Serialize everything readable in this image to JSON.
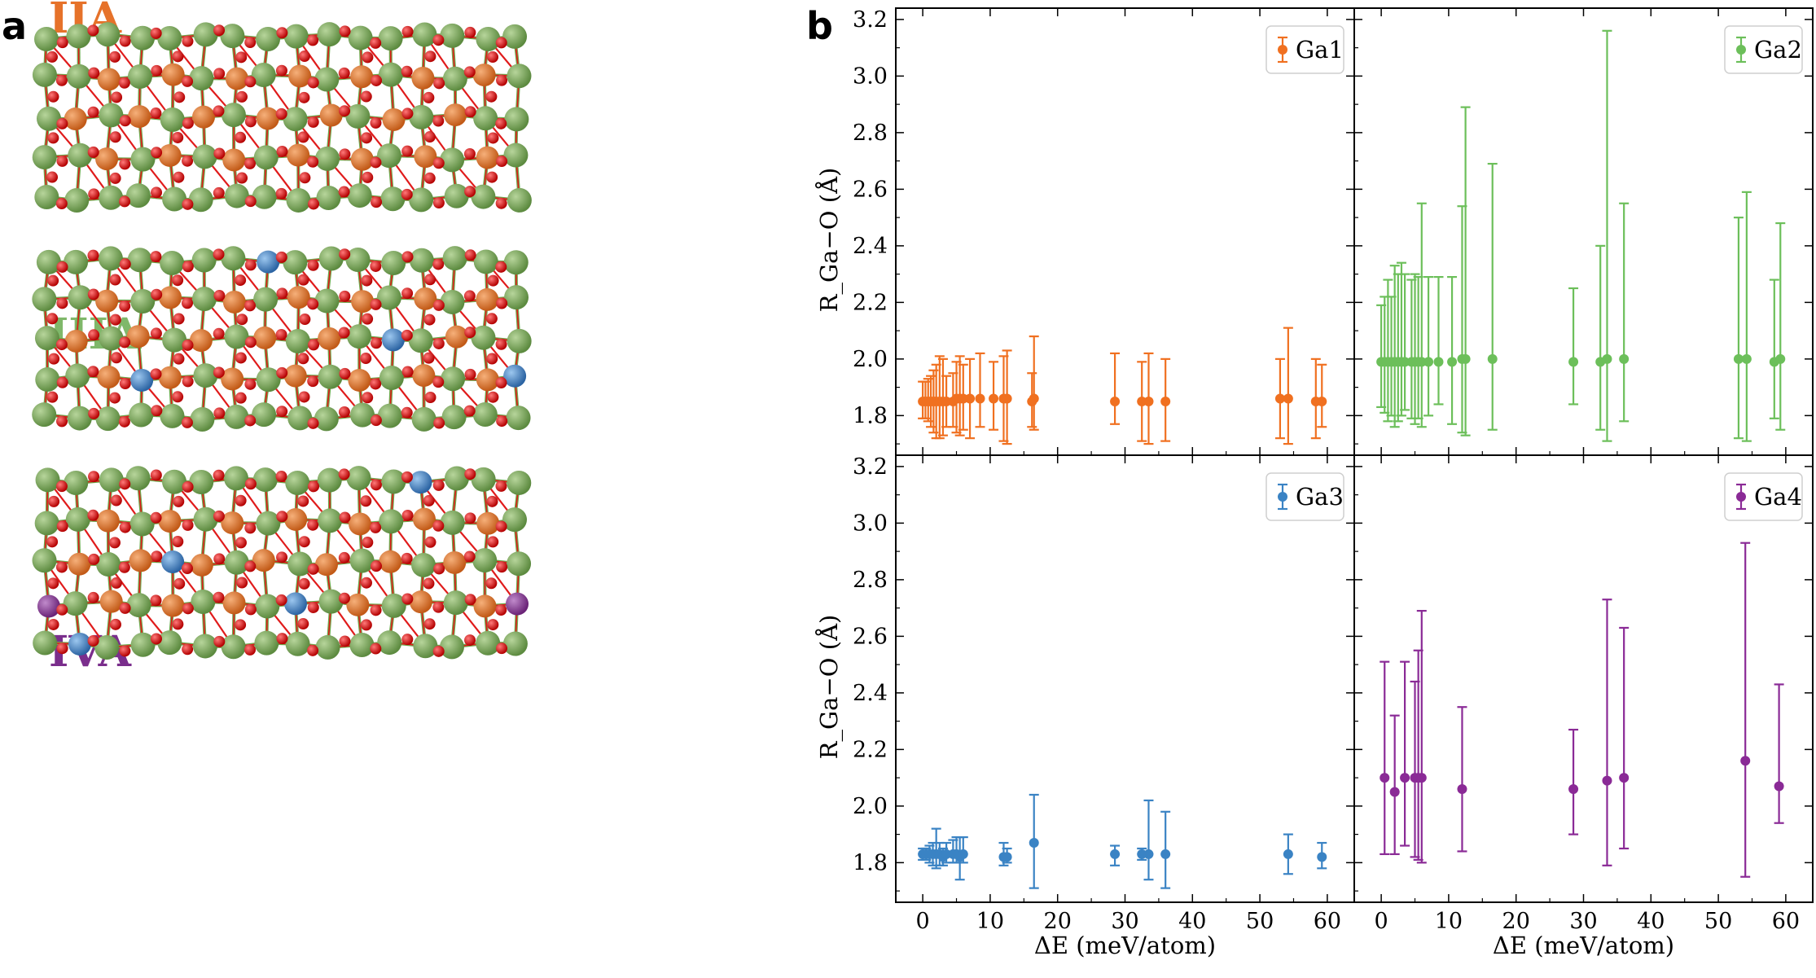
{
  "panel_a": {
    "label": "a",
    "structures": [
      {
        "name": "IIA",
        "color": "#e6722a"
      },
      {
        "name": "IIIA",
        "color": "#7fb86a"
      },
      {
        "name": "IVA",
        "color": "#7a2e8c"
      }
    ],
    "atom_colors": {
      "green": "#7fa95f",
      "orange": "#e0742a",
      "blue": "#3d7fc0",
      "purple": "#8a3d96",
      "oxygen": "#e01b1b",
      "bond": "#6cab4e"
    }
  },
  "panel_b": {
    "label": "b",
    "shared_xlabel": "ΔE (meV/atom)",
    "shared_ylabel": "R_Ga−O (Å)"
  },
  "chart_data": [
    {
      "type": "scatter",
      "name": "Ga1",
      "legend": "Ga1",
      "color": "#f07020",
      "xlim": [
        -4,
        64
      ],
      "ylim": [
        1.66,
        3.24
      ],
      "xticks": [
        0,
        10,
        20,
        30,
        40,
        50,
        60
      ],
      "yticks": [
        1.8,
        2.0,
        2.2,
        2.4,
        2.6,
        2.8,
        3.0,
        3.2
      ],
      "xlabel": "",
      "ylabel": "R_Ga−O (Å)",
      "points": [
        {
          "x": 0.0,
          "y": 1.85,
          "lo": 1.79,
          "hi": 1.92
        },
        {
          "x": 0.4,
          "y": 1.85,
          "lo": 1.79,
          "hi": 1.92
        },
        {
          "x": 0.8,
          "y": 1.85,
          "lo": 1.78,
          "hi": 1.93
        },
        {
          "x": 1.2,
          "y": 1.85,
          "lo": 1.76,
          "hi": 1.94
        },
        {
          "x": 1.6,
          "y": 1.85,
          "lo": 1.74,
          "hi": 1.96
        },
        {
          "x": 2.0,
          "y": 1.85,
          "lo": 1.72,
          "hi": 1.98
        },
        {
          "x": 2.5,
          "y": 1.85,
          "lo": 1.72,
          "hi": 2.01
        },
        {
          "x": 3.0,
          "y": 1.85,
          "lo": 1.73,
          "hi": 2.0
        },
        {
          "x": 3.5,
          "y": 1.85,
          "lo": 1.76,
          "hi": 1.94
        },
        {
          "x": 4.5,
          "y": 1.85,
          "lo": 1.76,
          "hi": 1.95
        },
        {
          "x": 5.0,
          "y": 1.86,
          "lo": 1.74,
          "hi": 1.99
        },
        {
          "x": 5.5,
          "y": 1.86,
          "lo": 1.73,
          "hi": 2.01
        },
        {
          "x": 6.0,
          "y": 1.86,
          "lo": 1.75,
          "hi": 1.98
        },
        {
          "x": 7.0,
          "y": 1.86,
          "lo": 1.72,
          "hi": 2.0
        },
        {
          "x": 8.5,
          "y": 1.86,
          "lo": 1.76,
          "hi": 2.02
        },
        {
          "x": 10.5,
          "y": 1.86,
          "lo": 1.75,
          "hi": 1.99
        },
        {
          "x": 12.0,
          "y": 1.86,
          "lo": 1.71,
          "hi": 2.01
        },
        {
          "x": 12.5,
          "y": 1.86,
          "lo": 1.7,
          "hi": 2.03
        },
        {
          "x": 16.2,
          "y": 1.85,
          "lo": 1.76,
          "hi": 1.95
        },
        {
          "x": 16.5,
          "y": 1.86,
          "lo": 1.75,
          "hi": 2.08
        },
        {
          "x": 28.5,
          "y": 1.85,
          "lo": 1.77,
          "hi": 2.02
        },
        {
          "x": 32.5,
          "y": 1.85,
          "lo": 1.71,
          "hi": 1.99
        },
        {
          "x": 33.5,
          "y": 1.85,
          "lo": 1.7,
          "hi": 2.02
        },
        {
          "x": 36.0,
          "y": 1.85,
          "lo": 1.71,
          "hi": 2.0
        },
        {
          "x": 53.0,
          "y": 1.86,
          "lo": 1.72,
          "hi": 2.0
        },
        {
          "x": 54.2,
          "y": 1.86,
          "lo": 1.7,
          "hi": 2.11
        },
        {
          "x": 58.3,
          "y": 1.85,
          "lo": 1.72,
          "hi": 2.0
        },
        {
          "x": 59.2,
          "y": 1.85,
          "lo": 1.76,
          "hi": 1.98
        }
      ]
    },
    {
      "type": "scatter",
      "name": "Ga2",
      "legend": "Ga2",
      "color": "#6cbf5a",
      "xlim": [
        -4,
        64
      ],
      "ylim": [
        1.66,
        3.24
      ],
      "xticks": [
        0,
        10,
        20,
        30,
        40,
        50,
        60
      ],
      "yticks": [
        1.8,
        2.0,
        2.2,
        2.4,
        2.6,
        2.8,
        3.0,
        3.2
      ],
      "xlabel": "",
      "ylabel": "",
      "points": [
        {
          "x": 0.0,
          "y": 1.99,
          "lo": 1.83,
          "hi": 2.19
        },
        {
          "x": 0.5,
          "y": 1.99,
          "lo": 1.81,
          "hi": 2.22
        },
        {
          "x": 1.0,
          "y": 1.99,
          "lo": 1.78,
          "hi": 2.28
        },
        {
          "x": 1.5,
          "y": 1.99,
          "lo": 1.8,
          "hi": 2.22
        },
        {
          "x": 2.0,
          "y": 1.99,
          "lo": 1.76,
          "hi": 2.33
        },
        {
          "x": 2.5,
          "y": 1.99,
          "lo": 1.78,
          "hi": 2.3
        },
        {
          "x": 3.0,
          "y": 1.99,
          "lo": 1.8,
          "hi": 2.34
        },
        {
          "x": 3.5,
          "y": 1.99,
          "lo": 1.82,
          "hi": 2.3
        },
        {
          "x": 4.5,
          "y": 1.99,
          "lo": 1.79,
          "hi": 2.28
        },
        {
          "x": 5.0,
          "y": 1.99,
          "lo": 1.77,
          "hi": 2.3
        },
        {
          "x": 5.5,
          "y": 1.99,
          "lo": 1.79,
          "hi": 2.29
        },
        {
          "x": 6.0,
          "y": 1.99,
          "lo": 1.76,
          "hi": 2.55
        },
        {
          "x": 7.0,
          "y": 1.99,
          "lo": 1.8,
          "hi": 2.29
        },
        {
          "x": 8.5,
          "y": 1.99,
          "lo": 1.84,
          "hi": 2.29
        },
        {
          "x": 10.5,
          "y": 1.99,
          "lo": 1.77,
          "hi": 2.29
        },
        {
          "x": 12.0,
          "y": 2.0,
          "lo": 1.74,
          "hi": 2.54
        },
        {
          "x": 12.5,
          "y": 2.0,
          "lo": 1.73,
          "hi": 2.89
        },
        {
          "x": 16.5,
          "y": 2.0,
          "lo": 1.75,
          "hi": 2.69
        },
        {
          "x": 28.5,
          "y": 1.99,
          "lo": 1.84,
          "hi": 2.25
        },
        {
          "x": 32.5,
          "y": 1.99,
          "lo": 1.75,
          "hi": 2.4
        },
        {
          "x": 33.5,
          "y": 2.0,
          "lo": 1.71,
          "hi": 3.16
        },
        {
          "x": 36.0,
          "y": 2.0,
          "lo": 1.78,
          "hi": 2.55
        },
        {
          "x": 53.0,
          "y": 2.0,
          "lo": 1.72,
          "hi": 2.5
        },
        {
          "x": 54.2,
          "y": 2.0,
          "lo": 1.71,
          "hi": 2.59
        },
        {
          "x": 58.3,
          "y": 1.99,
          "lo": 1.79,
          "hi": 2.28
        },
        {
          "x": 59.2,
          "y": 2.0,
          "lo": 1.75,
          "hi": 2.48
        }
      ]
    },
    {
      "type": "scatter",
      "name": "Ga3",
      "legend": "Ga3",
      "color": "#3a83c4",
      "xlim": [
        -4,
        64
      ],
      "ylim": [
        1.66,
        3.24
      ],
      "xticks": [
        0,
        10,
        20,
        30,
        40,
        50,
        60
      ],
      "yticks": [
        1.8,
        2.0,
        2.2,
        2.4,
        2.6,
        2.8,
        3.0,
        3.2
      ],
      "xlabel": "ΔE (meV/atom)",
      "ylabel": "R_Ga−O (Å)",
      "points": [
        {
          "x": 0.0,
          "y": 1.83,
          "lo": 1.81,
          "hi": 1.85
        },
        {
          "x": 0.5,
          "y": 1.83,
          "lo": 1.81,
          "hi": 1.85
        },
        {
          "x": 1.0,
          "y": 1.83,
          "lo": 1.8,
          "hi": 1.86
        },
        {
          "x": 1.5,
          "y": 1.83,
          "lo": 1.79,
          "hi": 1.87
        },
        {
          "x": 2.0,
          "y": 1.83,
          "lo": 1.78,
          "hi": 1.92
        },
        {
          "x": 2.5,
          "y": 1.83,
          "lo": 1.79,
          "hi": 1.87
        },
        {
          "x": 3.0,
          "y": 1.82,
          "lo": 1.79,
          "hi": 1.85
        },
        {
          "x": 3.5,
          "y": 1.83,
          "lo": 1.8,
          "hi": 1.87
        },
        {
          "x": 4.5,
          "y": 1.83,
          "lo": 1.8,
          "hi": 1.88
        },
        {
          "x": 5.0,
          "y": 1.83,
          "lo": 1.8,
          "hi": 1.89
        },
        {
          "x": 5.5,
          "y": 1.82,
          "lo": 1.74,
          "hi": 1.89
        },
        {
          "x": 6.0,
          "y": 1.83,
          "lo": 1.8,
          "hi": 1.89
        },
        {
          "x": 12.0,
          "y": 1.82,
          "lo": 1.79,
          "hi": 1.87
        },
        {
          "x": 12.5,
          "y": 1.82,
          "lo": 1.8,
          "hi": 1.85
        },
        {
          "x": 16.5,
          "y": 1.87,
          "lo": 1.71,
          "hi": 2.04
        },
        {
          "x": 28.5,
          "y": 1.83,
          "lo": 1.79,
          "hi": 1.86
        },
        {
          "x": 32.5,
          "y": 1.83,
          "lo": 1.81,
          "hi": 1.85
        },
        {
          "x": 33.5,
          "y": 1.83,
          "lo": 1.74,
          "hi": 2.02
        },
        {
          "x": 36.0,
          "y": 1.83,
          "lo": 1.71,
          "hi": 1.98
        },
        {
          "x": 54.2,
          "y": 1.83,
          "lo": 1.76,
          "hi": 1.9
        },
        {
          "x": 59.2,
          "y": 1.82,
          "lo": 1.78,
          "hi": 1.87
        }
      ]
    },
    {
      "type": "scatter",
      "name": "Ga4",
      "legend": "Ga4",
      "color": "#8a2a96",
      "xlim": [
        -4,
        64
      ],
      "ylim": [
        1.66,
        3.24
      ],
      "xticks": [
        0,
        10,
        20,
        30,
        40,
        50,
        60
      ],
      "yticks": [
        1.8,
        2.0,
        2.2,
        2.4,
        2.6,
        2.8,
        3.0,
        3.2
      ],
      "xlabel": "ΔE (meV/atom)",
      "ylabel": "",
      "points": [
        {
          "x": 0.5,
          "y": 2.1,
          "lo": 1.83,
          "hi": 2.51
        },
        {
          "x": 2.0,
          "y": 2.05,
          "lo": 1.83,
          "hi": 2.32
        },
        {
          "x": 3.5,
          "y": 2.1,
          "lo": 1.86,
          "hi": 2.51
        },
        {
          "x": 5.0,
          "y": 2.1,
          "lo": 1.82,
          "hi": 2.44
        },
        {
          "x": 5.5,
          "y": 2.1,
          "lo": 1.81,
          "hi": 2.55
        },
        {
          "x": 6.0,
          "y": 2.1,
          "lo": 1.8,
          "hi": 2.69
        },
        {
          "x": 12.0,
          "y": 2.06,
          "lo": 1.84,
          "hi": 2.35
        },
        {
          "x": 28.5,
          "y": 2.06,
          "lo": 1.9,
          "hi": 2.27
        },
        {
          "x": 33.5,
          "y": 2.09,
          "lo": 1.79,
          "hi": 2.73
        },
        {
          "x": 36.0,
          "y": 2.1,
          "lo": 1.85,
          "hi": 2.63
        },
        {
          "x": 54.0,
          "y": 2.16,
          "lo": 1.75,
          "hi": 2.93
        },
        {
          "x": 59.0,
          "y": 2.07,
          "lo": 1.94,
          "hi": 2.43
        }
      ]
    }
  ]
}
